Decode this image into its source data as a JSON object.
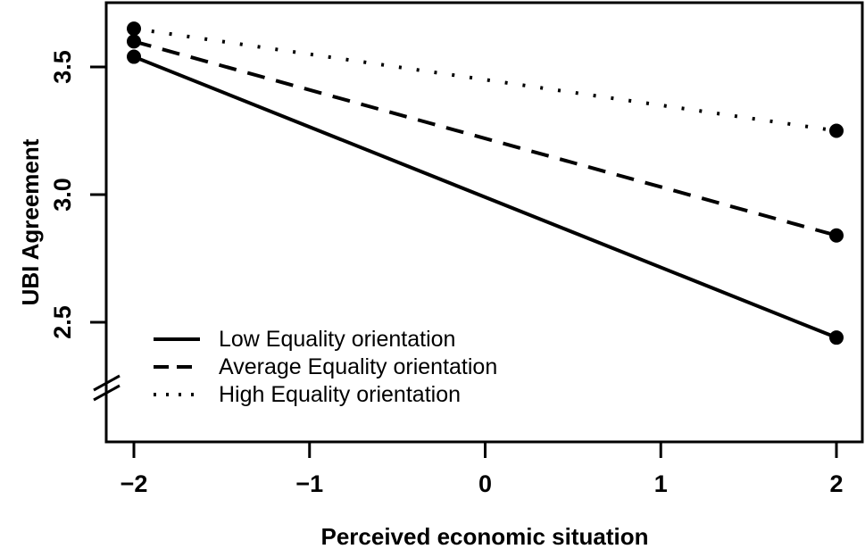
{
  "figure": {
    "background_color": "#ffffff",
    "ink_color": "#000000"
  },
  "chart_data": {
    "type": "line",
    "title": "",
    "xlabel": "Perceived economic situation",
    "ylabel": "UBI Agreement",
    "grid": false,
    "y_axis_break": true,
    "marker": "filled-circle",
    "x_ticks": [
      {
        "value": -2,
        "label": "−2"
      },
      {
        "value": -1,
        "label": "−1"
      },
      {
        "value": 0,
        "label": "0"
      },
      {
        "value": 1,
        "label": "1"
      },
      {
        "value": 2,
        "label": "2"
      }
    ],
    "y_ticks": [
      {
        "value": 2.5,
        "label": "2.5"
      },
      {
        "value": 3.0,
        "label": "3.0"
      },
      {
        "value": 3.5,
        "label": "3.5"
      }
    ],
    "series": [
      {
        "name": "Low Equality orientation",
        "line_style": "solid",
        "points": [
          {
            "x": -2,
            "y": 3.54
          },
          {
            "x": 2,
            "y": 2.44
          }
        ]
      },
      {
        "name": "Average Equality orientation",
        "line_style": "dashed",
        "points": [
          {
            "x": -2,
            "y": 3.6
          },
          {
            "x": 2,
            "y": 2.84
          }
        ]
      },
      {
        "name": "High Equality orientation",
        "line_style": "dotted",
        "points": [
          {
            "x": -2,
            "y": 3.65
          },
          {
            "x": 2,
            "y": 3.25
          }
        ]
      }
    ],
    "legend": {
      "position": "bottom-left"
    }
  }
}
